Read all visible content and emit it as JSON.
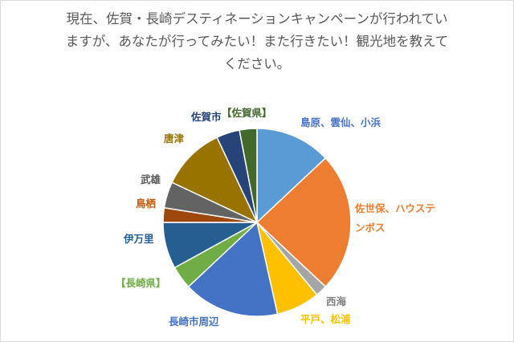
{
  "question": {
    "line1": "現在、佐賀・長崎デスティネーションキャンペーンが行われてい",
    "line2": "ますが、あなたが行ってみたい！また行きたい！観光地を教えて",
    "line3": "ください。"
  },
  "chart_data": {
    "type": "pie",
    "title": "",
    "legend": "none",
    "slices": [
      {
        "label": "島原、雲仙、小浜",
        "label_lines": [
          "島原、雲仙、小浜"
        ],
        "value": 13.0,
        "color": "#5b9bd5"
      },
      {
        "label": "佐世保、ハウステンボス",
        "label_lines": [
          "佐世保、ハウステ",
          "ンボス"
        ],
        "value": 24.0,
        "color": "#ed7d31"
      },
      {
        "label": "西海",
        "label_lines": [
          "西海"
        ],
        "value": 2.0,
        "color": "#a5a5a5"
      },
      {
        "label": "平戸、松浦",
        "label_lines": [
          "平戸、松浦"
        ],
        "value": 7.5,
        "color": "#ffc000"
      },
      {
        "label": "長崎市周辺",
        "label_lines": [
          "長崎市周辺"
        ],
        "value": 16.5,
        "color": "#4472c4"
      },
      {
        "label": "【長崎県】",
        "label_lines": [
          "【長崎県】"
        ],
        "value": 4.0,
        "color": "#70ad47"
      },
      {
        "label": "伊万里",
        "label_lines": [
          "伊万里"
        ],
        "value": 8.0,
        "color": "#255e91"
      },
      {
        "label": "鳥栖",
        "label_lines": [
          "鳥栖"
        ],
        "value": 2.5,
        "color": "#9e480e"
      },
      {
        "label": "武雄",
        "label_lines": [
          "武雄"
        ],
        "value": 4.5,
        "color": "#636363"
      },
      {
        "label": "唐津",
        "label_lines": [
          "唐津"
        ],
        "value": 11.0,
        "color": "#997300"
      },
      {
        "label": "佐賀市",
        "label_lines": [
          "佐賀市"
        ],
        "value": 4.0,
        "color": "#264478"
      },
      {
        "label": "【佐賀県】",
        "label_lines": [
          "【佐賀県】"
        ],
        "value": 3.0,
        "color": "#43682b"
      }
    ]
  }
}
